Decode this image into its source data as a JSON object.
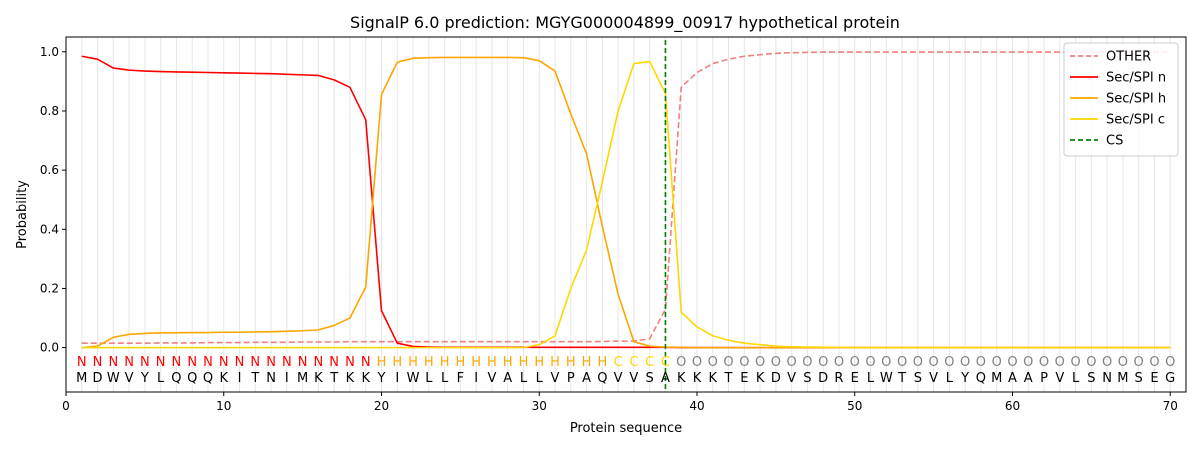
{
  "chart_data": {
    "type": "line",
    "title": "SignalP 6.0 prediction: MGYG000004899_00917 hypothetical protein",
    "xlabel": "Protein sequence",
    "ylabel": "Probability",
    "xlim": [
      0,
      71
    ],
    "ylim": [
      -0.15,
      1.05
    ],
    "x_ticks": [
      0,
      10,
      20,
      30,
      40,
      50,
      60,
      70
    ],
    "y_ticks": [
      0.0,
      0.2,
      0.4,
      0.6,
      0.8,
      1.0
    ],
    "y_tick_labels": [
      "0.0",
      "0.2",
      "0.4",
      "0.6",
      "0.8",
      "1.0"
    ],
    "legend_position": "top-right",
    "grid": "vertical lines at each residue",
    "sequence": [
      "M",
      "D",
      "W",
      "V",
      "Y",
      "L",
      "Q",
      "Q",
      "Q",
      "K",
      "I",
      "T",
      "N",
      "I",
      "M",
      "K",
      "T",
      "K",
      "K",
      "Y",
      "I",
      "W",
      "L",
      "L",
      "F",
      "I",
      "V",
      "A",
      "L",
      "L",
      "V",
      "P",
      "A",
      "Q",
      "V",
      "V",
      "S",
      "A",
      "K",
      "K",
      "K",
      "T",
      "E",
      "K",
      "D",
      "V",
      "S",
      "D",
      "R",
      "E",
      "L",
      "W",
      "T",
      "S",
      "V",
      "L",
      "Y",
      "Q",
      "M",
      "A",
      "A",
      "P",
      "V",
      "L",
      "S",
      "N",
      "M",
      "S",
      "E",
      "G"
    ],
    "labels": [
      "N",
      "N",
      "N",
      "N",
      "N",
      "N",
      "N",
      "N",
      "N",
      "N",
      "N",
      "N",
      "N",
      "N",
      "N",
      "N",
      "N",
      "N",
      "N",
      "H",
      "H",
      "H",
      "H",
      "H",
      "H",
      "H",
      "H",
      "H",
      "H",
      "H",
      "H",
      "H",
      "H",
      "H",
      "C",
      "C",
      "C",
      "C",
      "O",
      "O",
      "O",
      "O",
      "O",
      "O",
      "O",
      "O",
      "O",
      "O",
      "O",
      "O",
      "O",
      "O",
      "O",
      "O",
      "O",
      "O",
      "O",
      "O",
      "O",
      "O",
      "O",
      "O",
      "O",
      "O",
      "O",
      "O",
      "O",
      "O",
      "O",
      "O"
    ],
    "label_colors": {
      "N": "#ff0000",
      "H": "#ffa500",
      "C": "#ffd700",
      "O": "#808080"
    },
    "cs_position": 38,
    "series": [
      {
        "name": "OTHER",
        "color": "#f08080",
        "dash": true,
        "values": [
          0.015,
          0.015,
          0.015,
          0.015,
          0.015,
          0.016,
          0.016,
          0.016,
          0.017,
          0.017,
          0.017,
          0.018,
          0.018,
          0.018,
          0.019,
          0.019,
          0.019,
          0.02,
          0.02,
          0.02,
          0.02,
          0.02,
          0.02,
          0.02,
          0.02,
          0.02,
          0.02,
          0.02,
          0.02,
          0.02,
          0.02,
          0.02,
          0.02,
          0.021,
          0.022,
          0.022,
          0.03,
          0.13,
          0.88,
          0.93,
          0.96,
          0.975,
          0.985,
          0.99,
          0.995,
          0.997,
          0.998,
          0.999,
          0.999,
          0.999,
          0.999,
          0.999,
          0.999,
          0.999,
          0.999,
          0.999,
          0.999,
          0.999,
          0.999,
          0.999,
          0.999,
          0.999,
          0.999,
          0.999,
          0.999,
          0.999,
          0.999,
          0.999,
          0.999,
          0.999
        ]
      },
      {
        "name": "Sec/SPI n",
        "color": "#ff0000",
        "dash": false,
        "values": [
          0.985,
          0.975,
          0.945,
          0.938,
          0.935,
          0.933,
          0.932,
          0.931,
          0.93,
          0.929,
          0.928,
          0.927,
          0.926,
          0.924,
          0.922,
          0.92,
          0.905,
          0.88,
          0.77,
          0.125,
          0.015,
          0.004,
          0.002,
          0.001,
          0.001,
          0.001,
          0.001,
          0.001,
          0.001,
          0.001,
          0.001,
          0.001,
          0.001,
          0.001,
          0.001,
          0.001,
          0.001,
          0.001,
          0.0,
          0.0,
          0.0,
          0.0,
          0.0,
          0.0,
          0.0,
          0.0,
          0.0,
          0.0,
          0.0,
          0.0,
          0.0,
          0.0,
          0.0,
          0.0,
          0.0,
          0.0,
          0.0,
          0.0,
          0.0,
          0.0,
          0.0,
          0.0,
          0.0,
          0.0,
          0.0,
          0.0,
          0.0,
          0.0,
          0.0,
          0.0
        ]
      },
      {
        "name": "Sec/SPI h",
        "color": "#ffa500",
        "dash": false,
        "values": [
          0.0,
          0.005,
          0.035,
          0.045,
          0.048,
          0.05,
          0.05,
          0.051,
          0.051,
          0.052,
          0.052,
          0.053,
          0.054,
          0.055,
          0.057,
          0.06,
          0.075,
          0.1,
          0.205,
          0.855,
          0.965,
          0.978,
          0.98,
          0.981,
          0.981,
          0.981,
          0.981,
          0.981,
          0.98,
          0.97,
          0.935,
          0.79,
          0.655,
          0.41,
          0.18,
          0.02,
          0.005,
          0.002,
          0.001,
          0.0,
          0.0,
          0.0,
          0.0,
          0.0,
          0.0,
          0.0,
          0.0,
          0.0,
          0.0,
          0.0,
          0.0,
          0.0,
          0.0,
          0.0,
          0.0,
          0.0,
          0.0,
          0.0,
          0.0,
          0.0,
          0.0,
          0.0,
          0.0,
          0.0,
          0.0,
          0.0,
          0.0,
          0.0,
          0.0,
          0.0
        ]
      },
      {
        "name": "Sec/SPI c",
        "color": "#ffd700",
        "dash": false,
        "values": [
          0.0,
          0.0,
          0.0,
          0.0,
          0.0,
          0.0,
          0.0,
          0.0,
          0.0,
          0.0,
          0.0,
          0.0,
          0.0,
          0.0,
          0.0,
          0.0,
          0.0,
          0.0,
          0.0,
          0.0,
          0.0,
          0.0,
          0.0,
          0.0,
          0.0,
          0.0,
          0.0,
          0.0,
          0.0,
          0.01,
          0.04,
          0.2,
          0.33,
          0.56,
          0.8,
          0.96,
          0.967,
          0.86,
          0.12,
          0.07,
          0.04,
          0.025,
          0.015,
          0.01,
          0.005,
          0.003,
          0.002,
          0.001,
          0.001,
          0.0,
          0.0,
          0.0,
          0.0,
          0.0,
          0.0,
          0.0,
          0.0,
          0.0,
          0.0,
          0.0,
          0.0,
          0.0,
          0.0,
          0.0,
          0.0,
          0.0,
          0.0,
          0.0,
          0.0,
          0.0
        ]
      }
    ],
    "legend": [
      {
        "name": "OTHER",
        "color": "#f08080",
        "dash": true
      },
      {
        "name": "Sec/SPI n",
        "color": "#ff0000",
        "dash": false
      },
      {
        "name": "Sec/SPI h",
        "color": "#ffa500",
        "dash": false
      },
      {
        "name": "Sec/SPI c",
        "color": "#ffd700",
        "dash": false
      },
      {
        "name": "CS",
        "color": "#008000",
        "dash": true
      }
    ]
  }
}
